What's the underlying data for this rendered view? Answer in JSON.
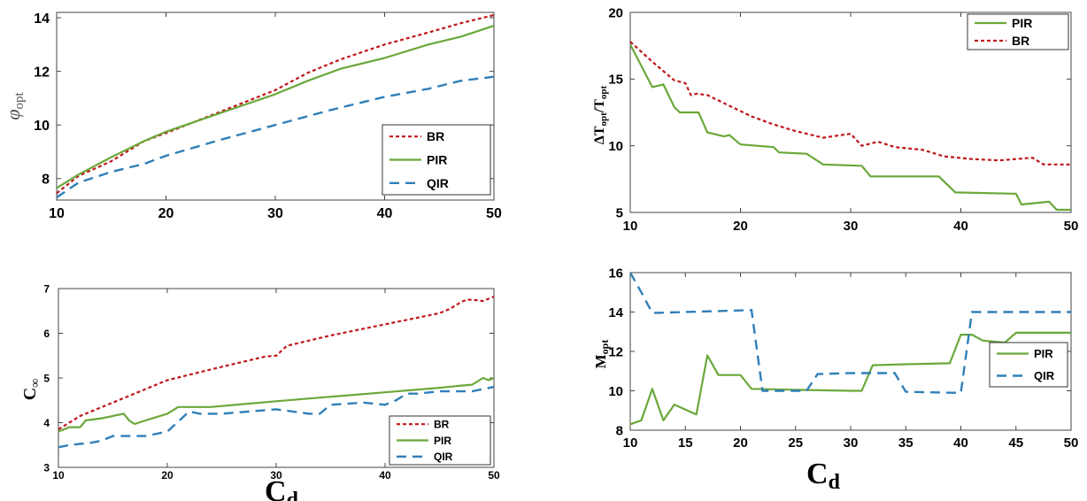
{
  "colors": {
    "BR": "#c0181c",
    "PIR": "#6aa83a",
    "QIR": "#2f7fb8"
  },
  "chart_data": [
    {
      "type": "line",
      "xlim": [
        10,
        50
      ],
      "ylim": [
        7.2,
        14.2
      ],
      "xticks": [
        "10",
        "20",
        "30",
        "40",
        "50"
      ],
      "yticks": [
        "8",
        "10",
        "12",
        "14"
      ],
      "ylabel": "φ",
      "ylabel_sub": "opt",
      "xlabel": "",
      "legend_position": "bottom-right",
      "series": [
        {
          "name": "BR",
          "x": [
            10,
            12,
            15,
            18,
            20,
            25,
            30,
            33,
            36,
            40,
            44,
            47,
            50
          ],
          "y": [
            7.45,
            8.1,
            8.65,
            9.4,
            9.7,
            10.5,
            11.3,
            11.95,
            12.45,
            13.0,
            13.45,
            13.8,
            14.1
          ]
        },
        {
          "name": "PIR",
          "x": [
            10,
            12,
            15,
            18,
            20,
            25,
            30,
            33,
            36,
            40,
            44,
            47,
            50
          ],
          "y": [
            7.65,
            8.15,
            8.8,
            9.4,
            9.75,
            10.45,
            11.15,
            11.65,
            12.1,
            12.5,
            13.0,
            13.3,
            13.7
          ]
        },
        {
          "name": "QIR",
          "x": [
            10,
            12,
            15,
            18,
            20,
            25,
            30,
            35,
            40,
            44,
            47,
            50
          ],
          "y": [
            7.3,
            7.85,
            8.25,
            8.55,
            8.85,
            9.45,
            10.0,
            10.55,
            11.05,
            11.35,
            11.65,
            11.8
          ]
        }
      ]
    },
    {
      "type": "line",
      "xlim": [
        10,
        50
      ],
      "ylim": [
        5,
        20
      ],
      "xticks": [
        "10",
        "20",
        "30",
        "40",
        "50"
      ],
      "yticks": [
        "5",
        "10",
        "15",
        "20"
      ],
      "ylabel": "ΔT",
      "ylabel_sub": "opt",
      "ylabel_mid": "/T",
      "ylabel_sub2": "opt",
      "xlabel": "",
      "legend_position": "top-right",
      "series": [
        {
          "name": "PIR",
          "x": [
            10,
            12,
            13,
            14,
            14.5,
            15.5,
            16.2,
            17,
            18.5,
            19,
            20,
            23,
            23.5,
            26,
            27.5,
            31,
            31.8,
            34,
            38,
            39.5,
            45,
            45.5,
            48,
            48.7,
            50
          ],
          "y": [
            17.6,
            14.4,
            14.6,
            12.9,
            12.5,
            12.5,
            12.5,
            11.0,
            10.7,
            10.8,
            10.1,
            9.9,
            9.5,
            9.4,
            8.6,
            8.5,
            7.7,
            7.7,
            7.7,
            6.5,
            6.4,
            5.6,
            5.8,
            5.2,
            5.2
          ]
        },
        {
          "name": "BR",
          "x": [
            10,
            12,
            14,
            15,
            15.5,
            16,
            17,
            19,
            21,
            23,
            25,
            27.5,
            30,
            31,
            32.5,
            34,
            36.5,
            38.5,
            41,
            43.5,
            46.5,
            47.5,
            50
          ],
          "y": [
            17.8,
            16.3,
            14.9,
            14.7,
            13.8,
            13.9,
            13.8,
            13.0,
            12.2,
            11.6,
            11.1,
            10.6,
            10.9,
            10.0,
            10.3,
            9.9,
            9.7,
            9.2,
            9.0,
            8.9,
            9.1,
            8.6,
            8.6
          ]
        }
      ]
    },
    {
      "type": "line",
      "xlim": [
        10,
        50
      ],
      "ylim": [
        3,
        7
      ],
      "xticks": [
        "10",
        "20",
        "30",
        "40",
        "50"
      ],
      "yticks": [
        "3",
        "4",
        "5",
        "6",
        "7"
      ],
      "ylabel": "C",
      "ylabel_sub": "∞",
      "xlabel": "C",
      "xlabel_sub": "d",
      "legend_position": "bottom-right",
      "series": [
        {
          "name": "BR",
          "x": [
            10,
            12,
            15,
            18,
            20,
            25,
            29,
            30,
            31,
            35,
            40,
            45,
            46,
            47,
            47.5,
            48,
            49,
            50
          ],
          "y": [
            3.85,
            4.15,
            4.45,
            4.75,
            4.95,
            5.25,
            5.48,
            5.5,
            5.72,
            5.95,
            6.2,
            6.45,
            6.55,
            6.7,
            6.75,
            6.75,
            6.72,
            6.82
          ]
        },
        {
          "name": "PIR",
          "x": [
            10,
            11,
            12,
            12.5,
            14,
            16,
            16.5,
            17,
            18,
            20,
            21,
            24,
            30,
            35,
            40,
            45,
            47,
            48,
            49,
            49.5,
            50
          ],
          "y": [
            3.8,
            3.9,
            3.9,
            4.05,
            4.1,
            4.2,
            4.05,
            3.97,
            4.05,
            4.2,
            4.35,
            4.35,
            4.48,
            4.58,
            4.68,
            4.78,
            4.83,
            4.85,
            5.0,
            4.95,
            5.0
          ]
        },
        {
          "name": "QIR",
          "x": [
            10,
            11,
            13,
            14,
            15,
            17,
            18,
            20,
            22,
            23,
            25,
            30,
            33,
            34,
            35,
            38,
            40,
            41,
            42,
            43,
            45,
            47,
            48,
            50
          ],
          "y": [
            3.45,
            3.5,
            3.55,
            3.6,
            3.7,
            3.7,
            3.7,
            3.8,
            4.25,
            4.2,
            4.2,
            4.3,
            4.2,
            4.2,
            4.4,
            4.45,
            4.4,
            4.5,
            4.65,
            4.65,
            4.7,
            4.7,
            4.7,
            4.8
          ]
        }
      ]
    },
    {
      "type": "line",
      "xlim": [
        10,
        50
      ],
      "ylim": [
        8,
        16
      ],
      "xticks": [
        "10",
        "15",
        "20",
        "25",
        "30",
        "35",
        "40",
        "45",
        "50"
      ],
      "yticks": [
        "8",
        "10",
        "12",
        "14",
        "16"
      ],
      "ylabel": "M",
      "ylabel_sub": "opt",
      "xlabel": "C",
      "xlabel_sub": "d",
      "legend_position": "right",
      "series": [
        {
          "name": "PIR",
          "x": [
            10,
            11,
            12,
            13,
            14,
            16,
            17,
            18,
            20,
            21,
            25,
            30,
            31,
            32,
            35,
            39,
            40,
            41,
            42,
            44,
            45,
            50
          ],
          "y": [
            8.3,
            8.5,
            10.1,
            8.5,
            9.3,
            8.8,
            11.8,
            10.8,
            10.8,
            10.1,
            10.05,
            10.0,
            10.0,
            11.3,
            11.35,
            11.4,
            12.85,
            12.85,
            12.55,
            12.45,
            12.95,
            12.95
          ]
        },
        {
          "name": "QIR",
          "x": [
            10,
            11,
            12,
            15,
            18,
            21,
            22,
            23,
            26,
            27,
            30,
            32,
            34,
            35,
            39,
            40,
            41,
            45,
            50
          ],
          "y": [
            16,
            15.0,
            13.95,
            14.0,
            14.05,
            14.1,
            10.0,
            10.0,
            10.0,
            10.85,
            10.9,
            10.9,
            10.9,
            9.95,
            9.9,
            9.9,
            14.0,
            14.0,
            14.0
          ]
        }
      ]
    }
  ]
}
